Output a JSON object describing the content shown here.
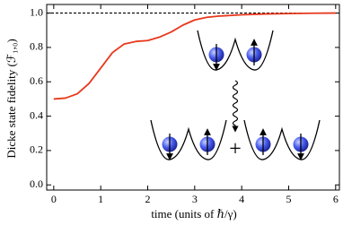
{
  "chart_data": {
    "type": "line",
    "xlabel": "time (units of ℏ/γ)",
    "ylabel": "Dicke state fidelity (ℱ₁,₀)",
    "x": [
      0,
      0.25,
      0.5,
      0.75,
      1.0,
      1.25,
      1.5,
      1.75,
      2.0,
      2.25,
      2.5,
      2.75,
      3.0,
      3.25,
      3.5,
      4.0,
      4.5,
      5.0,
      5.5,
      6.0
    ],
    "series": [
      {
        "color": "#e8381c",
        "values": [
          0.5,
          0.505,
          0.53,
          0.59,
          0.68,
          0.77,
          0.82,
          0.835,
          0.84,
          0.86,
          0.89,
          0.93,
          0.96,
          0.975,
          0.982,
          0.99,
          0.995,
          0.997,
          0.999,
          1.0
        ]
      }
    ],
    "reference_line": 1.0,
    "xlim": [
      -0.15,
      6.08
    ],
    "ylim": [
      -0.03,
      1.05
    ],
    "xticks": [
      0,
      1,
      2,
      3,
      4,
      5,
      6
    ],
    "yticks": [
      {
        "value": 0,
        "label": "0.0"
      },
      0.2,
      0.4,
      0.6,
      0.8,
      {
        "value": 1,
        "label": "1.0"
      }
    ],
    "inset": {
      "plus": "+"
    }
  }
}
